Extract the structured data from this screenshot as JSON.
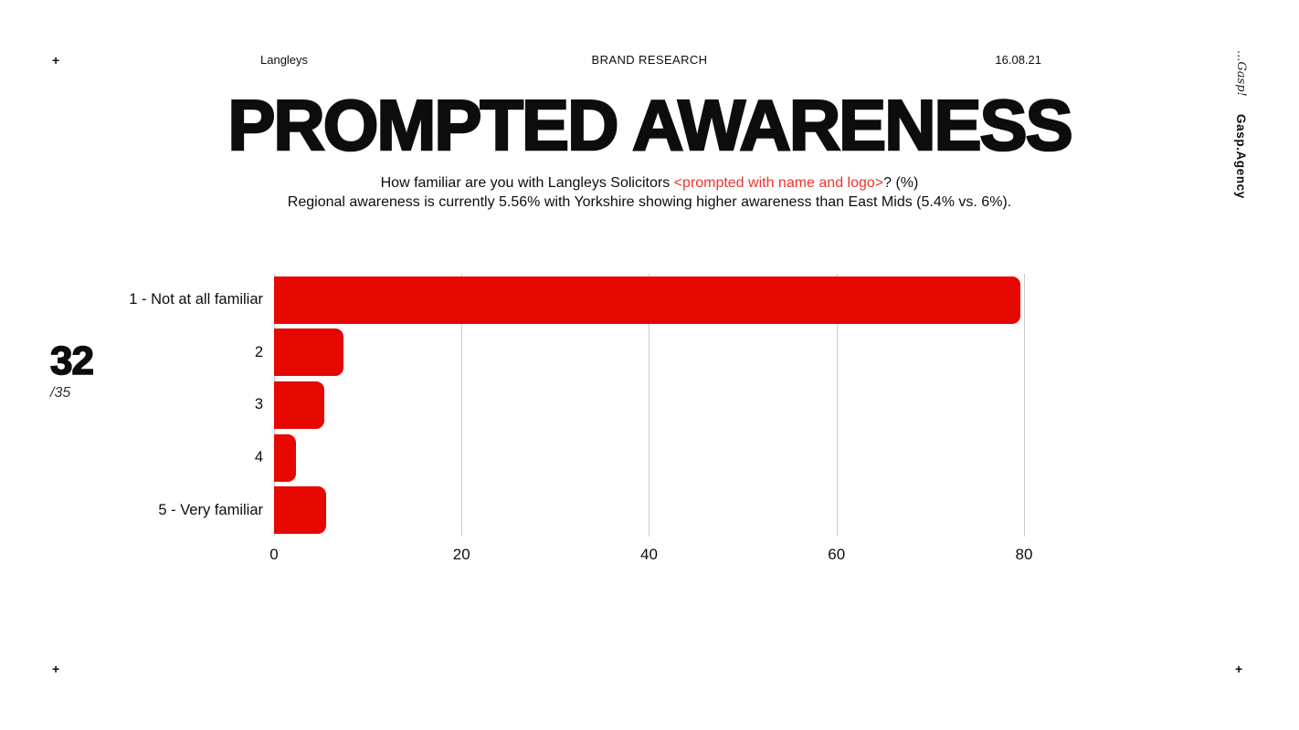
{
  "header": {
    "client": "Langleys",
    "center": "BRAND RESEARCH",
    "date": "16.08.21"
  },
  "corner_mark": "+",
  "branding": {
    "script": "...Gasp!",
    "agency": "Gasp.Agency"
  },
  "title": "PROMPTED AWARENESS",
  "subtitle": {
    "line1_prefix": "How familiar are you with Langleys Solicitors ",
    "line1_highlight": "<prompted with name and logo>",
    "line1_suffix": "? (%)",
    "line2": "Regional awareness is currently 5.56% with Yorkshire showing higher awareness than East Mids (5.4% vs. 6%)."
  },
  "page": {
    "number": "32",
    "total": "/35"
  },
  "colors": {
    "bar": "#e60800",
    "highlight_text": "#ee352a",
    "gridline": "#cccccc",
    "text": "#0d0d0d"
  },
  "chart_data": {
    "type": "bar",
    "orientation": "horizontal",
    "title": "",
    "xlabel": "",
    "ylabel": "",
    "categories": [
      "1 - Not at all familiar",
      "2",
      "3",
      "4",
      "5 - Very familiar"
    ],
    "values": [
      79.6,
      7.4,
      5.4,
      2.3,
      5.6
    ],
    "x_ticks": [
      0,
      20,
      40,
      60,
      80
    ],
    "xlim": [
      0,
      85.75
    ],
    "grid": true,
    "legend": false
  }
}
